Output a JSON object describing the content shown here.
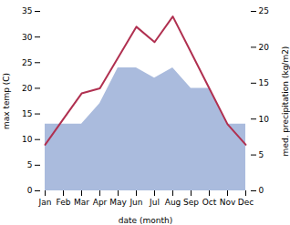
{
  "chart_data": {
    "type": "line",
    "xlabel": "date (month)",
    "ylabel": "max temp (C)",
    "y2label": "med. precipitation (kg/m2)",
    "categories": [
      "Jan",
      "Feb",
      "Mar",
      "Apr",
      "May",
      "Jun",
      "Jul",
      "Aug",
      "Sep",
      "Oct",
      "Nov",
      "Dec"
    ],
    "series": [
      {
        "type": "area",
        "color": "#aabbdd",
        "values": [
          13,
          13,
          13,
          17,
          24,
          24,
          22,
          24,
          20,
          20,
          13,
          13
        ]
      },
      {
        "type": "line",
        "color": "#b03050",
        "values": [
          9,
          14,
          19,
          20,
          26,
          32,
          29,
          34,
          27,
          20,
          13,
          9
        ]
      }
    ],
    "ylim": [
      0,
      35
    ],
    "yticks": [
      0,
      5,
      10,
      15,
      20,
      25,
      30,
      35
    ],
    "y2lim": [
      0,
      25
    ],
    "y2ticks": [
      0,
      5,
      10,
      15,
      20,
      25
    ],
    "grid": false
  }
}
